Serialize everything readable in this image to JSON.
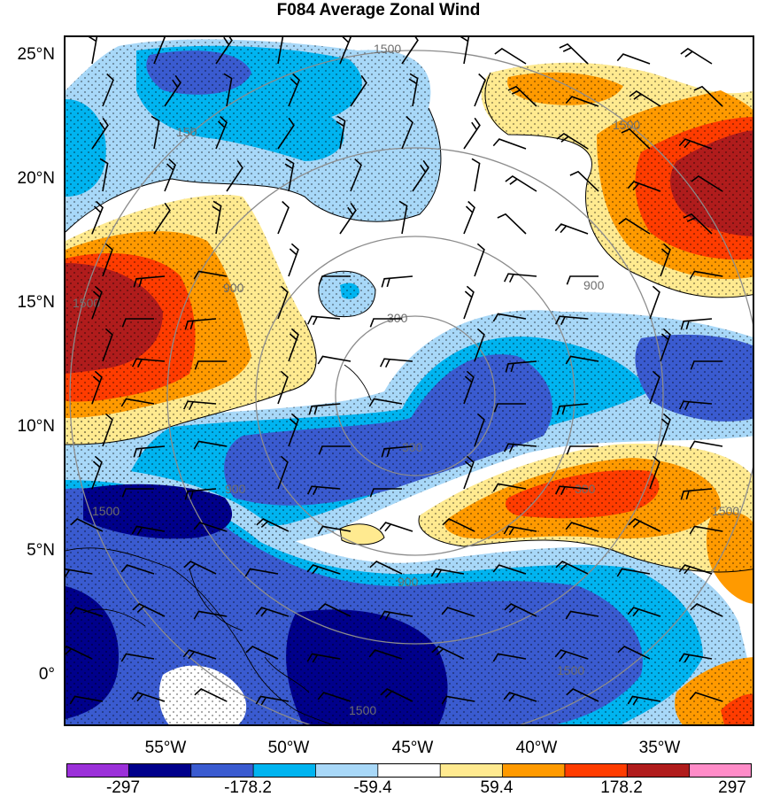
{
  "title": "F084 Average Zonal Wind",
  "lat_labels": [
    "25°N",
    "20°N",
    "15°N",
    "10°N",
    "5°N",
    "0°"
  ],
  "lon_labels": [
    "55°W",
    "50°W",
    "45°W",
    "40°W",
    "35°W"
  ],
  "contour_labels": [
    "1500",
    "1500",
    "150",
    "900",
    "900",
    "300",
    "300",
    "1500",
    "900",
    "1500",
    "300",
    "900",
    "1500",
    "1500",
    "1500"
  ],
  "colorbar": {
    "colors": [
      "#9b30d9",
      "#00008b",
      "#3a5bd0",
      "#00b4f0",
      "#a8d8f8",
      "#ffffff",
      "#ffea90",
      "#ff9a00",
      "#ff3c00",
      "#b01c1c",
      "#ff8cc8"
    ],
    "labels": [
      "-297",
      "-178.2",
      "-59.4",
      "59.4",
      "178.2",
      "297"
    ]
  },
  "palette": {
    "navy": "#00008b",
    "blue": "#3a5bd0",
    "cyan": "#00b4f0",
    "lightblue": "#a8d8f8",
    "yellow": "#ffea90",
    "orange": "#ff9a00",
    "redorange": "#ff3c00",
    "darkred": "#b01c1c",
    "range_ring": "#8c8c8c"
  }
}
